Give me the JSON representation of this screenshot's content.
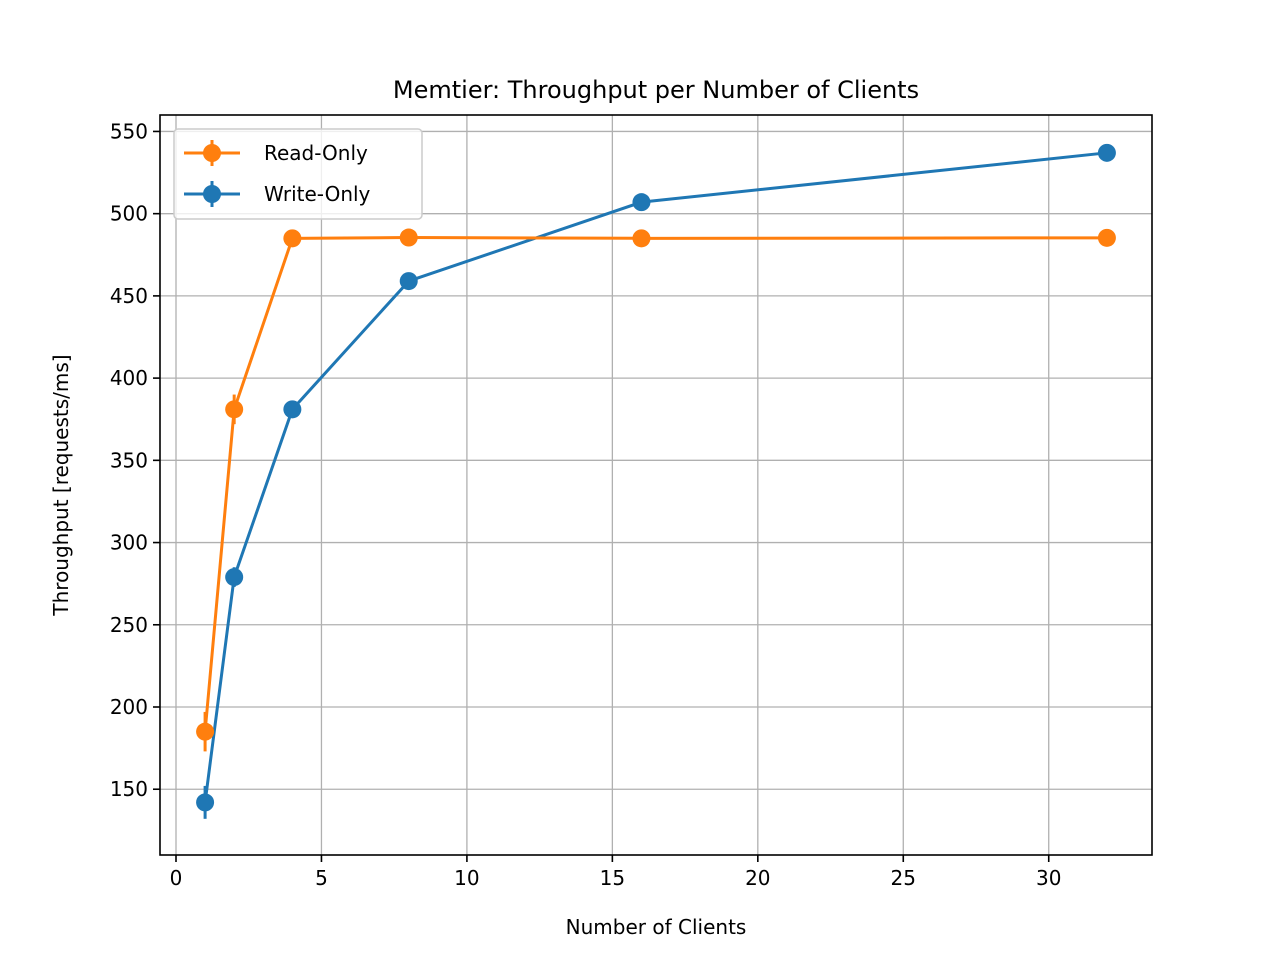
{
  "chart_data": {
    "type": "line",
    "title": "Memtier: Throughput per Number of Clients",
    "xlabel": "Number of Clients",
    "ylabel": "Throughput [requests/ms]",
    "xlim": [
      -0.55,
      33.55
    ],
    "ylim": [
      110,
      560
    ],
    "xticks": [
      0,
      5,
      10,
      15,
      20,
      25,
      30
    ],
    "yticks": [
      150,
      200,
      250,
      300,
      350,
      400,
      450,
      500,
      550
    ],
    "grid": true,
    "legend_position": "top-left",
    "series": [
      {
        "name": "Read-Only",
        "color": "#ff7f0e",
        "x": [
          1,
          2,
          4,
          8,
          16,
          32
        ],
        "y": [
          185,
          381,
          485,
          485.5,
          485,
          485.3
        ],
        "yerr": [
          12,
          9,
          1.5,
          1,
          1,
          1
        ]
      },
      {
        "name": "Write-Only",
        "color": "#1f77b4",
        "x": [
          1,
          2,
          4,
          8,
          16,
          32
        ],
        "y": [
          142,
          279,
          381,
          459,
          507,
          537
        ],
        "yerr": [
          10,
          6,
          2,
          1.5,
          1.5,
          1.5
        ]
      }
    ]
  }
}
